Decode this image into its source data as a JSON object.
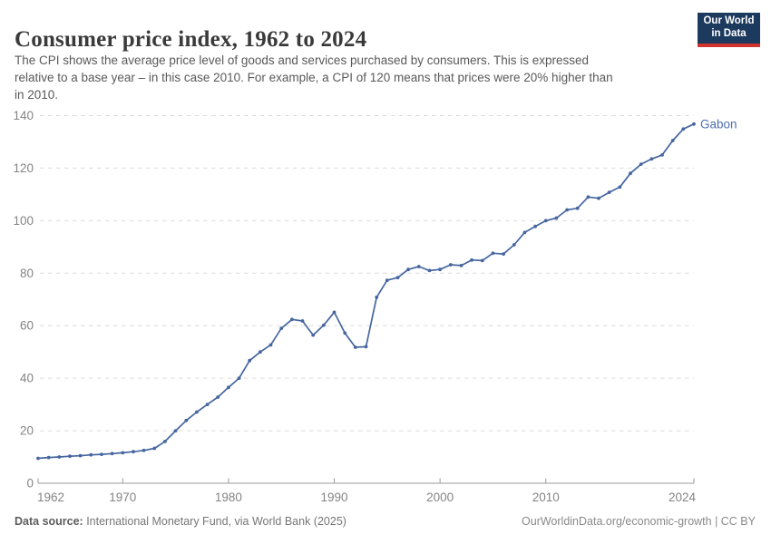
{
  "header": {
    "title": "Consumer price index, 1962 to 2024",
    "subtitle_lines": [
      "The CPI shows the average price level of goods and services purchased by consumers. This is expressed",
      "relative to a base year – in this case 2010. For example, a CPI of 120 means that prices were 20% higher than",
      "in 2010."
    ],
    "logo": {
      "line1": "Our World",
      "line2": "in Data"
    }
  },
  "footer": {
    "source_label": "Data source:",
    "source_text": " International Monetary Fund, via World Bank (2025)",
    "credit": "OurWorldinData.org/economic-growth | CC BY"
  },
  "brand_colors": {
    "logo_navy": "#1c3a5e",
    "logo_red": "#d0342c"
  },
  "chart_data": {
    "type": "line",
    "title": "Consumer price index, 1962 to 2024",
    "xlabel": "",
    "ylabel": "",
    "xlim": [
      1962,
      2024
    ],
    "ylim": [
      0,
      140
    ],
    "x_ticks": [
      1962,
      1970,
      1980,
      1990,
      2000,
      2010,
      2024
    ],
    "y_ticks": [
      0,
      20,
      40,
      60,
      80,
      100,
      120,
      140
    ],
    "grid": "horizontal-dashed",
    "legend_position": "end-of-line-label",
    "colors": {
      "line": "#4666a0",
      "entity_label": "#4e6fae",
      "grid": "#dcdcdc",
      "axis": "#9a9a9a",
      "tick_label": "#848484"
    },
    "x": [
      1962,
      1963,
      1964,
      1965,
      1966,
      1967,
      1968,
      1969,
      1970,
      1971,
      1972,
      1973,
      1974,
      1975,
      1976,
      1977,
      1978,
      1979,
      1980,
      1981,
      1982,
      1983,
      1984,
      1985,
      1986,
      1987,
      1988,
      1989,
      1990,
      1991,
      1992,
      1993,
      1994,
      1995,
      1996,
      1997,
      1998,
      1999,
      2000,
      2001,
      2002,
      2003,
      2004,
      2005,
      2006,
      2007,
      2008,
      2009,
      2010,
      2011,
      2012,
      2013,
      2014,
      2015,
      2016,
      2017,
      2018,
      2019,
      2020,
      2021,
      2022,
      2023,
      2024
    ],
    "series": [
      {
        "name": "Gabon",
        "values": [
          9.5,
          9.8,
          10.0,
          10.3,
          10.5,
          10.8,
          11.0,
          11.3,
          11.6,
          12.0,
          12.5,
          13.3,
          15.9,
          20.0,
          23.9,
          27.1,
          30.0,
          32.8,
          36.5,
          40.0,
          46.7,
          50.0,
          52.7,
          59.0,
          62.4,
          61.8,
          56.4,
          60.2,
          65.1,
          57.2,
          51.8,
          52.0,
          70.8,
          77.3,
          78.3,
          81.4,
          82.5,
          81.0,
          81.4,
          83.2,
          82.9,
          85.0,
          84.8,
          87.6,
          87.3,
          90.8,
          95.5,
          97.8,
          100.0,
          101.0,
          104.1,
          104.7,
          109.0,
          108.5,
          110.8,
          112.8,
          118.0,
          121.5,
          123.5,
          125.0,
          130.5,
          134.9,
          136.8
        ]
      }
    ]
  }
}
